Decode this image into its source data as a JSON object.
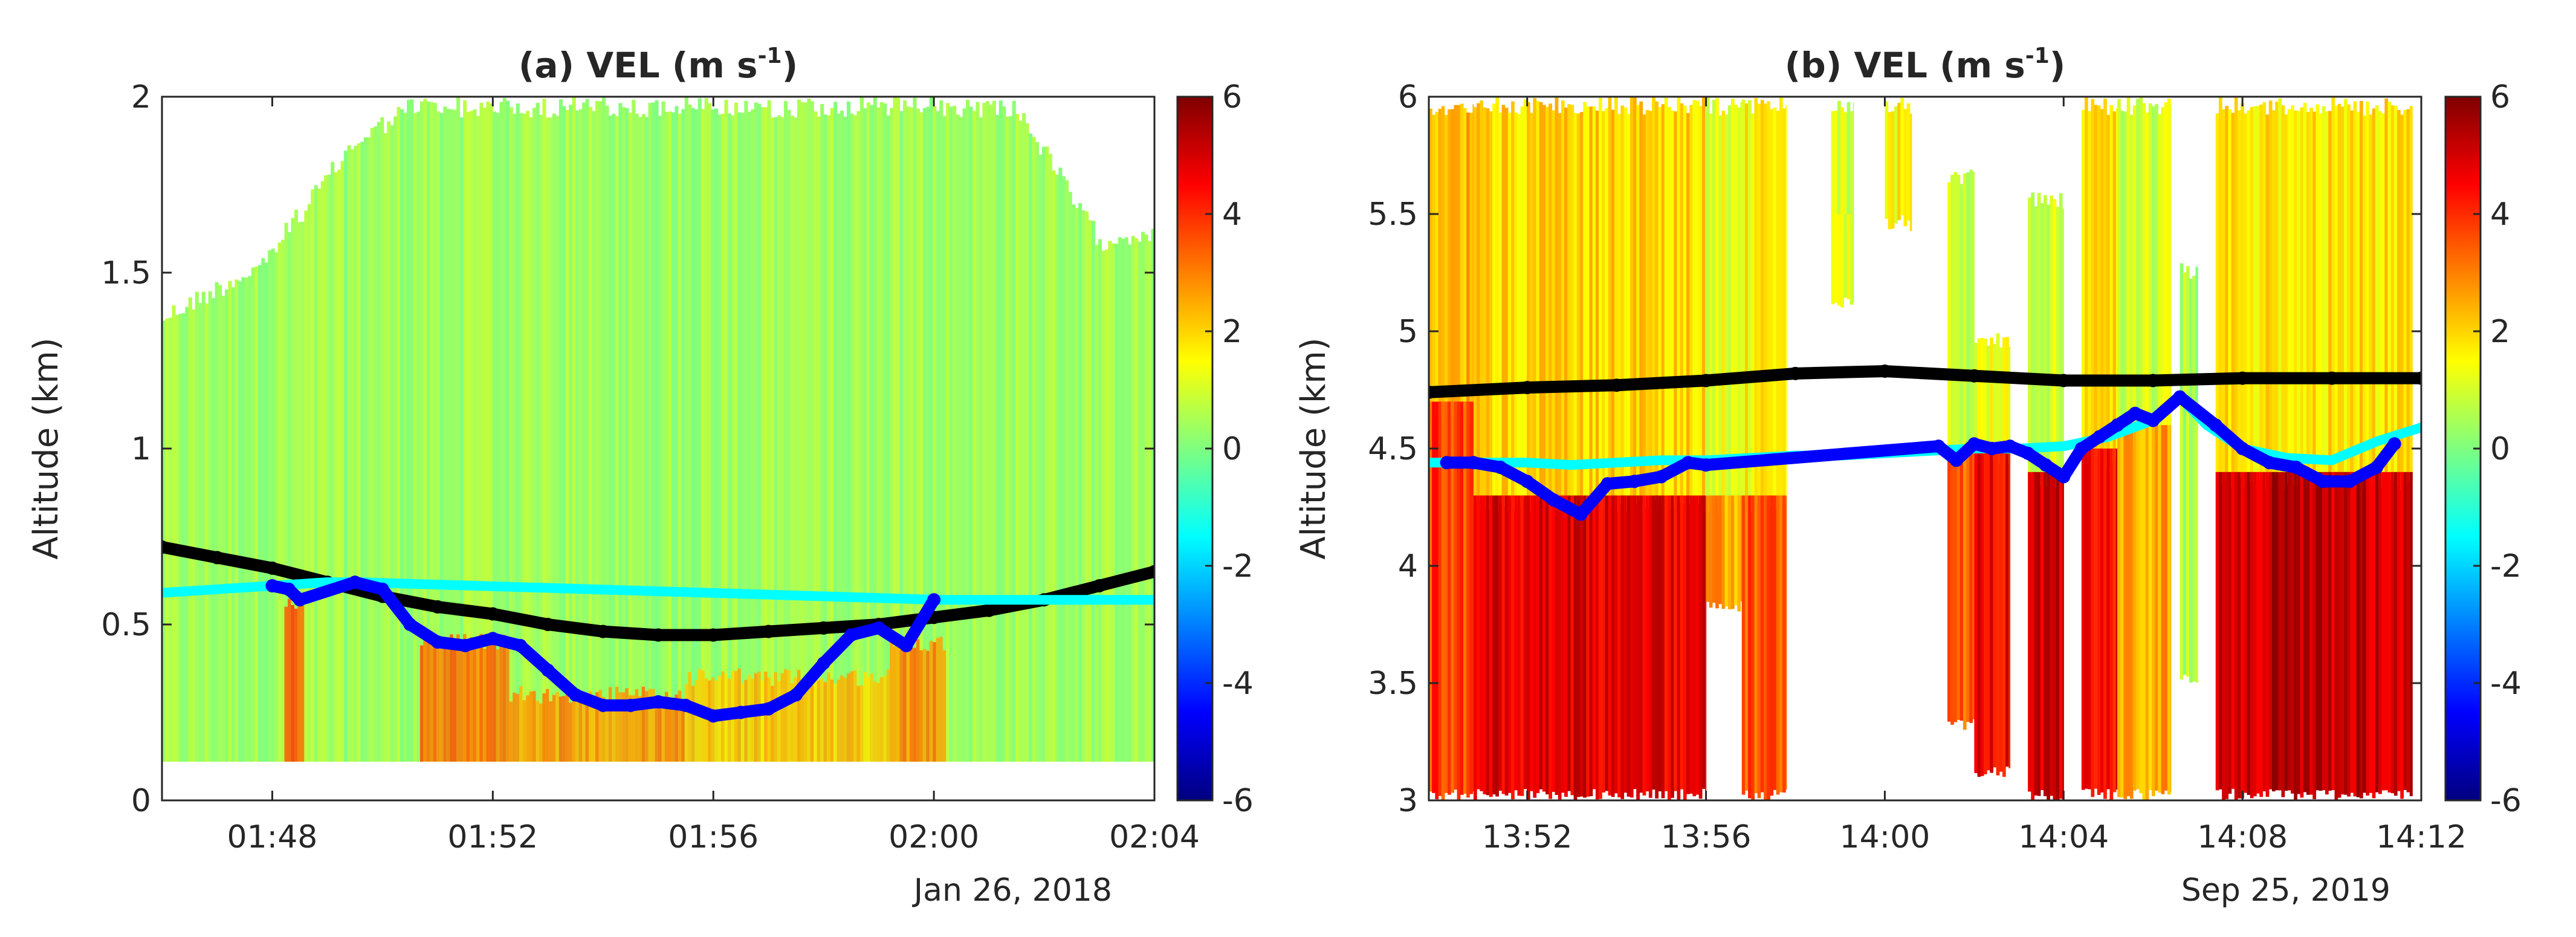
{
  "chart_data": [
    {
      "type": "heatmap",
      "panel": "(a)",
      "title_main": "(a) VEL (m s",
      "title_exp": "-1",
      "title_close": ")",
      "ylabel": "Altitude (km)",
      "date_label": "Jan 26, 2018",
      "ylim": [
        0,
        2
      ],
      "yticks": [
        "0",
        "0.5",
        "1",
        "1.5",
        "2"
      ],
      "xlim_minutes": [
        106,
        124
      ],
      "xticks": [
        {
          "label": "01:48",
          "t": 108
        },
        {
          "label": "01:52",
          "t": 112
        },
        {
          "label": "01:56",
          "t": 116
        },
        {
          "label": "02:00",
          "t": 120
        },
        {
          "label": "02:04",
          "t": 124
        }
      ],
      "colorbar": {
        "min": -6,
        "max": 6,
        "ticks": [
          "6",
          "4",
          "2",
          "0",
          "-2",
          "-4",
          "-6"
        ]
      },
      "field": {
        "bottom_km": 0.11,
        "top_segments": [
          [
            106,
            1.4
          ],
          [
            107.8,
            1.55
          ],
          [
            109.5,
            1.9
          ],
          [
            110.5,
            2.0
          ],
          [
            121.5,
            2.0
          ],
          [
            123,
            1.62
          ],
          [
            124,
            1.65
          ]
        ],
        "background_value": 0.4,
        "strong_downdraft_bands": [
          {
            "t0": 108.2,
            "t1": 108.6,
            "value": 3.5,
            "top_km": 0.55
          },
          {
            "t0": 110.7,
            "t1": 112.3,
            "value": 3.2,
            "top_km": 0.45
          },
          {
            "t0": 112.3,
            "t1": 115.5,
            "value": 2.8,
            "top_km": 0.3
          },
          {
            "t0": 115.5,
            "t1": 119.2,
            "value": 2.2,
            "top_km": 0.35
          },
          {
            "t0": 119.2,
            "t1": 120.2,
            "value": 3.0,
            "top_km": 0.45
          }
        ]
      },
      "series": [
        {
          "name": "black",
          "color": "#000000",
          "t": [
            106,
            107,
            108,
            109,
            110,
            111,
            112,
            113,
            114,
            115,
            116,
            117,
            118,
            119,
            120,
            121,
            122,
            123,
            124
          ],
          "alt_km": [
            0.72,
            0.69,
            0.66,
            0.62,
            0.58,
            0.55,
            0.53,
            0.5,
            0.48,
            0.47,
            0.47,
            0.48,
            0.49,
            0.5,
            0.52,
            0.54,
            0.57,
            0.61,
            0.65
          ]
        },
        {
          "name": "cyan",
          "color": "#00ffff",
          "t": [
            106,
            107,
            108,
            109,
            109.6,
            120.1,
            121,
            122,
            123,
            124
          ],
          "alt_km": [
            0.59,
            0.6,
            0.61,
            0.62,
            0.62,
            0.57,
            0.57,
            0.57,
            0.57,
            0.57
          ]
        },
        {
          "name": "blue",
          "color": "#0000ff",
          "t": [
            108.0,
            108.3,
            108.5,
            109.5,
            110.0,
            110.5,
            111.0,
            111.5,
            112.0,
            112.5,
            113.0,
            113.5,
            114.0,
            114.5,
            115.0,
            115.5,
            116.0,
            116.5,
            117.0,
            117.5,
            118.0,
            118.5,
            119.0,
            119.5,
            120.0
          ],
          "alt_km": [
            0.61,
            0.6,
            0.57,
            0.62,
            0.6,
            0.5,
            0.45,
            0.44,
            0.46,
            0.44,
            0.37,
            0.3,
            0.27,
            0.27,
            0.28,
            0.27,
            0.24,
            0.25,
            0.26,
            0.3,
            0.39,
            0.47,
            0.49,
            0.44,
            0.57
          ]
        }
      ]
    },
    {
      "type": "heatmap",
      "panel": "(b)",
      "title_main": "(b) VEL (m s",
      "title_exp": "-1",
      "title_close": ")",
      "ylabel": "Altitude (km)",
      "date_label": "Sep 25, 2019",
      "ylim": [
        3,
        6
      ],
      "yticks": [
        "3",
        "3.5",
        "4",
        "4.5",
        "5",
        "5.5",
        "6"
      ],
      "xlim_minutes": [
        829.8,
        852
      ],
      "xticks": [
        {
          "label": "13:52",
          "t": 832
        },
        {
          "label": "13:56",
          "t": 836
        },
        {
          "label": "14:00",
          "t": 840
        },
        {
          "label": "14:04",
          "t": 844
        },
        {
          "label": "14:08",
          "t": 848
        },
        {
          "label": "14:12",
          "t": 852
        }
      ],
      "colorbar": {
        "min": -6,
        "max": 6,
        "ticks": [
          "6",
          "4",
          "2",
          "0",
          "-2",
          "-4",
          "-6"
        ]
      },
      "field": {
        "precip_segments": [
          {
            "t0": 829.8,
            "t1": 830.8,
            "value": 2.4,
            "low_value": 3.8,
            "top_km": 6.0,
            "low_top_km": 4.7,
            "bottom_km": 3.0
          },
          {
            "t0": 830.8,
            "t1": 836.0,
            "value": 2.0,
            "low_value": 4.8,
            "top_km": 6.0,
            "low_top_km": 4.3,
            "bottom_km": 3.0
          },
          {
            "t0": 836.0,
            "t1": 836.8,
            "value": 1.2,
            "low_value": 2.5,
            "top_km": 6.0,
            "low_top_km": 4.3,
            "bottom_km": 3.8
          },
          {
            "t0": 836.8,
            "t1": 837.8,
            "value": 1.5,
            "low_value": 3.5,
            "top_km": 6.0,
            "low_top_km": 4.3,
            "bottom_km": 3.0
          },
          {
            "t0": 838.8,
            "t1": 839.3,
            "value": 1.0,
            "low_value": 1.0,
            "top_km": 6.0,
            "low_top_km": 5.5,
            "bottom_km": 5.1
          },
          {
            "t0": 840.0,
            "t1": 840.6,
            "value": 1.5,
            "low_value": 1.5,
            "top_km": 6.0,
            "low_top_km": 5.5,
            "bottom_km": 5.5
          },
          {
            "t0": 841.4,
            "t1": 842.0,
            "value": 0.8,
            "low_value": 3.5,
            "top_km": 5.7,
            "low_top_km": 4.5,
            "bottom_km": 3.3
          },
          {
            "t0": 842.0,
            "t1": 842.8,
            "value": 1.2,
            "low_value": 4.5,
            "top_km": 5.0,
            "low_top_km": 4.5,
            "bottom_km": 3.1
          },
          {
            "t0": 843.2,
            "t1": 844.0,
            "value": 1.0,
            "low_value": 5.0,
            "top_km": 5.6,
            "low_top_km": 4.4,
            "bottom_km": 3.0
          },
          {
            "t0": 844.4,
            "t1": 845.2,
            "value": 1.8,
            "low_value": 4.5,
            "top_km": 6.0,
            "low_top_km": 4.5,
            "bottom_km": 3.0
          },
          {
            "t0": 845.2,
            "t1": 846.4,
            "value": 1.0,
            "low_value": 2.5,
            "top_km": 6.0,
            "low_top_km": 4.6,
            "bottom_km": 3.0
          },
          {
            "t0": 846.6,
            "t1": 847.0,
            "value": 0.5,
            "low_value": 0.5,
            "top_km": 5.3,
            "low_top_km": 4.7,
            "bottom_km": 3.5
          },
          {
            "t0": 847.4,
            "t1": 851.8,
            "value": 1.8,
            "low_value": 5.2,
            "top_km": 6.0,
            "low_top_km": 4.4,
            "bottom_km": 3.0
          }
        ]
      },
      "series": [
        {
          "name": "black",
          "color": "#000000",
          "t": [
            829.8,
            832,
            834,
            836,
            838,
            840,
            842,
            844,
            846,
            848,
            850,
            852
          ],
          "alt_km": [
            4.74,
            4.76,
            4.77,
            4.79,
            4.82,
            4.83,
            4.81,
            4.79,
            4.79,
            4.8,
            4.8,
            4.8
          ]
        },
        {
          "name": "cyan",
          "color": "#00ffff",
          "t": [
            829.8,
            831,
            832,
            833,
            834,
            835,
            836,
            837,
            838,
            839,
            840,
            841,
            842,
            843,
            844,
            845,
            846,
            846.6,
            847.2,
            848,
            849,
            850,
            851,
            852
          ],
          "alt_km": [
            4.44,
            4.44,
            4.44,
            4.43,
            4.44,
            4.45,
            4.45,
            4.46,
            4.47,
            4.47,
            4.48,
            4.49,
            4.5,
            4.5,
            4.51,
            4.55,
            4.62,
            4.72,
            4.6,
            4.5,
            4.46,
            4.45,
            4.53,
            4.59
          ]
        },
        {
          "name": "blue",
          "color": "#0000ff",
          "t": [
            830.2,
            830.8,
            831.4,
            832.0,
            832.6,
            833.2,
            833.8,
            834.4,
            835.0,
            835.6,
            836.0,
            841.2,
            841.6,
            842.0,
            842.4,
            842.8,
            843.2,
            843.6,
            844.0,
            844.4,
            844.8,
            845.2,
            845.6,
            846.0,
            846.6,
            847.4,
            848.0,
            848.6,
            849.2,
            849.8,
            850.4,
            851.0,
            851.4
          ],
          "alt_km": [
            4.44,
            4.44,
            4.42,
            4.36,
            4.28,
            4.22,
            4.35,
            4.36,
            4.38,
            4.44,
            4.43,
            4.51,
            4.45,
            4.52,
            4.5,
            4.51,
            4.48,
            4.43,
            4.38,
            4.5,
            4.55,
            4.6,
            4.65,
            4.62,
            4.72,
            4.6,
            4.5,
            4.44,
            4.42,
            4.36,
            4.36,
            4.42,
            4.52
          ]
        }
      ]
    }
  ]
}
